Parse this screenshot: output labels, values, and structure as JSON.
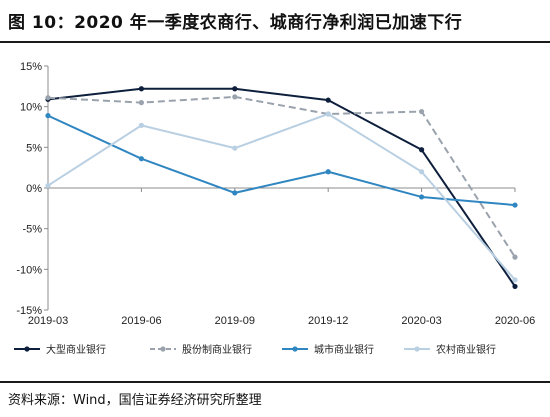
{
  "title": "图 10：2020 年一季度农商行、城商行净利润已加速下行",
  "source": "资料来源：Wind，国信证券经济研究所整理",
  "chart_data": {
    "type": "line",
    "categories": [
      "2019-03",
      "2019-06",
      "2019-09",
      "2019-12",
      "2020-03",
      "2020-06"
    ],
    "ylim": [
      -15,
      15
    ],
    "yticks": [
      "15%",
      "10%",
      "5%",
      "0%",
      "-5%",
      "-10%",
      "-15%"
    ],
    "ytick_values": [
      15,
      10,
      5,
      0,
      -5,
      -10,
      -15
    ],
    "grid": false,
    "legend_position": "bottom",
    "series": [
      {
        "name": "大型商业银行",
        "values": [
          10.9,
          12.2,
          12.2,
          10.8,
          4.7,
          -12.1
        ],
        "color": "#0d1f3c",
        "dash": "none",
        "marker": true
      },
      {
        "name": "股份制商业银行",
        "values": [
          11.1,
          10.5,
          11.2,
          9.1,
          9.4,
          -8.5
        ],
        "color": "#9aa3ad",
        "dash": "dashed",
        "marker": true
      },
      {
        "name": "城市商业银行",
        "values": [
          8.9,
          3.6,
          -0.6,
          2.0,
          -1.1,
          -2.1
        ],
        "color": "#2f86c0",
        "dash": "none",
        "marker": true
      },
      {
        "name": "农村商业银行",
        "values": [
          0.3,
          7.7,
          4.9,
          9.1,
          2.0,
          -11.3
        ],
        "color": "#b9cfe2",
        "dash": "none",
        "marker": true
      }
    ]
  }
}
